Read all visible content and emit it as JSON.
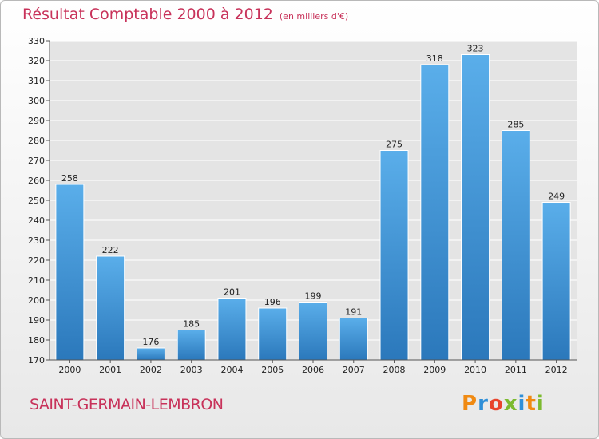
{
  "header": {
    "title": "Résultat Comptable 2000 à 2012",
    "subtitle": "(en milliers d'€)"
  },
  "footer": {
    "commune": "SAINT-GERMAIN-LEMBRON",
    "logo": "Proxiti",
    "logo_colors": [
      "#f08a12",
      "#2f8fd8",
      "#e8442c",
      "#7cba2f",
      "#2f8fd8",
      "#f08a12",
      "#7cba2f"
    ]
  },
  "chart_data": {
    "type": "bar",
    "title": "Résultat Comptable 2000 à 2012",
    "subtitle": "(en milliers d'€)",
    "categories": [
      "2000",
      "2001",
      "2002",
      "2003",
      "2004",
      "2005",
      "2006",
      "2007",
      "2008",
      "2009",
      "2010",
      "2011",
      "2012"
    ],
    "values": [
      258,
      222,
      176,
      185,
      201,
      196,
      199,
      191,
      275,
      318,
      323,
      285,
      249
    ],
    "ylim": [
      170,
      330
    ],
    "yticks": [
      170,
      180,
      190,
      200,
      210,
      220,
      230,
      240,
      250,
      260,
      270,
      280,
      290,
      300,
      310,
      320,
      330
    ],
    "grid": true,
    "bar_color": "#4a9ee0",
    "data_labels": true
  }
}
